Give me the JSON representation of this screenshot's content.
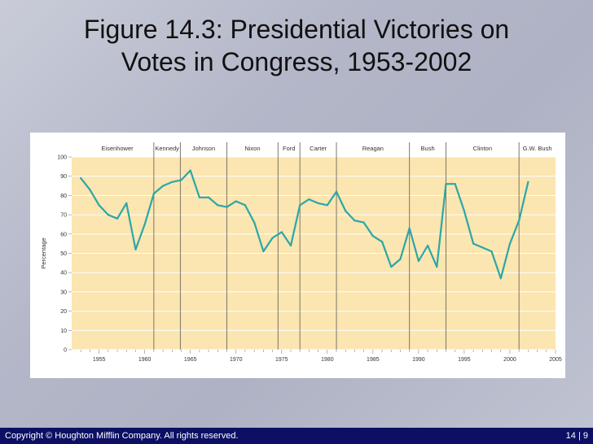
{
  "slide": {
    "title_line1": "Figure 14.3: Presidential Victories on",
    "title_line2": "Votes in Congress, 1953-2002"
  },
  "footer": {
    "copyright": "Copyright © Houghton Mifflin Company. All rights reserved.",
    "page": "14 | 9"
  },
  "colors": {
    "plot_background": "#fbe5b0",
    "line": "#2aa7a7",
    "footer_background": "#0c0f63"
  },
  "chart_data": {
    "type": "line",
    "title": "Figure 14.3: Presidential Victories on Votes in Congress, 1953-2002",
    "xlabel": "",
    "ylabel": "Percentage",
    "xlim": [
      1952,
      2005
    ],
    "ylim": [
      0,
      100
    ],
    "x_ticks": [
      1955,
      1960,
      1965,
      1970,
      1975,
      1980,
      1985,
      1990,
      1995,
      2000,
      2005
    ],
    "y_ticks": [
      0,
      10,
      20,
      30,
      40,
      50,
      60,
      70,
      80,
      90,
      100
    ],
    "grid": "horizontal",
    "presidents": [
      {
        "name": "Eisenhower",
        "start": 1953,
        "end": 1961
      },
      {
        "name": "Kennedy",
        "start": 1961,
        "end": 1963.9
      },
      {
        "name": "Johnson",
        "start": 1963.9,
        "end": 1969
      },
      {
        "name": "Nixon",
        "start": 1969,
        "end": 1974.6
      },
      {
        "name": "Ford",
        "start": 1974.6,
        "end": 1977
      },
      {
        "name": "Carter",
        "start": 1977,
        "end": 1981
      },
      {
        "name": "Reagan",
        "start": 1981,
        "end": 1989
      },
      {
        "name": "Bush",
        "start": 1989,
        "end": 1993
      },
      {
        "name": "Clinton",
        "start": 1993,
        "end": 2001
      },
      {
        "name": "G.W. Bush",
        "start": 2001,
        "end": 2005
      }
    ],
    "term_dividers": [
      1961,
      1963.9,
      1969,
      1974.6,
      1977,
      1981,
      1989,
      1993,
      2001
    ],
    "x": [
      1953,
      1954,
      1955,
      1956,
      1957,
      1958,
      1959,
      1960,
      1961,
      1962,
      1963,
      1964,
      1965,
      1966,
      1967,
      1968,
      1969,
      1970,
      1971,
      1972,
      1973,
      1974,
      1975,
      1976,
      1977,
      1978,
      1979,
      1980,
      1981,
      1982,
      1983,
      1984,
      1985,
      1986,
      1987,
      1988,
      1989,
      1990,
      1991,
      1992,
      1993,
      1994,
      1995,
      1996,
      1997,
      1998,
      1999,
      2000,
      2001,
      2002
    ],
    "values": [
      89,
      83,
      75,
      70,
      68,
      76,
      52,
      65,
      81,
      85,
      87,
      88,
      93,
      79,
      79,
      75,
      74,
      77,
      75,
      66,
      51,
      58,
      61,
      54,
      75,
      78,
      76,
      75,
      82,
      72,
      67,
      66,
      59,
      56,
      43,
      47,
      63,
      46,
      54,
      43,
      86,
      86,
      72,
      55,
      53,
      51,
      37,
      55,
      67,
      87
    ]
  }
}
